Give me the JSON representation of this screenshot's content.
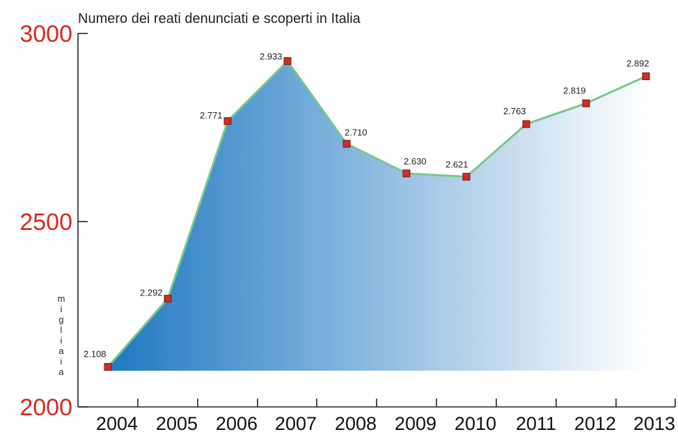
{
  "chart_data": {
    "type": "area",
    "title": "Numero dei reati denunciati e scoperti in Italia",
    "xlabel": "",
    "ylabel": "migliaia",
    "categories": [
      "2004",
      "2005",
      "2006",
      "2007",
      "2008",
      "2009",
      "2010",
      "2011",
      "2012",
      "2013"
    ],
    "series": [
      {
        "values": [
          2108,
          2292,
          2771,
          2933,
          2710,
          2630,
          2621,
          2763,
          2819,
          2892
        ]
      }
    ],
    "data_labels": [
      "2.108",
      "2.292",
      "2.771",
      "2.933",
      "2.710",
      "2.630",
      "2.621",
      "2.763",
      "2.819",
      "2.892"
    ],
    "y_ticks": [
      3000,
      2500,
      2000
    ],
    "y_tick_labels": [
      "3000",
      "2500",
      "2000"
    ],
    "ylim": [
      2000,
      3000
    ],
    "grid": false,
    "legend": "none",
    "colors": {
      "fill_start": "#1f78c1",
      "fill_end": "#ffffff",
      "line": "#79c88a",
      "marker": "#d62a20",
      "marker_border": "#6a1d16",
      "y_tick_text": "#d62a20",
      "axis": "#222222"
    }
  }
}
